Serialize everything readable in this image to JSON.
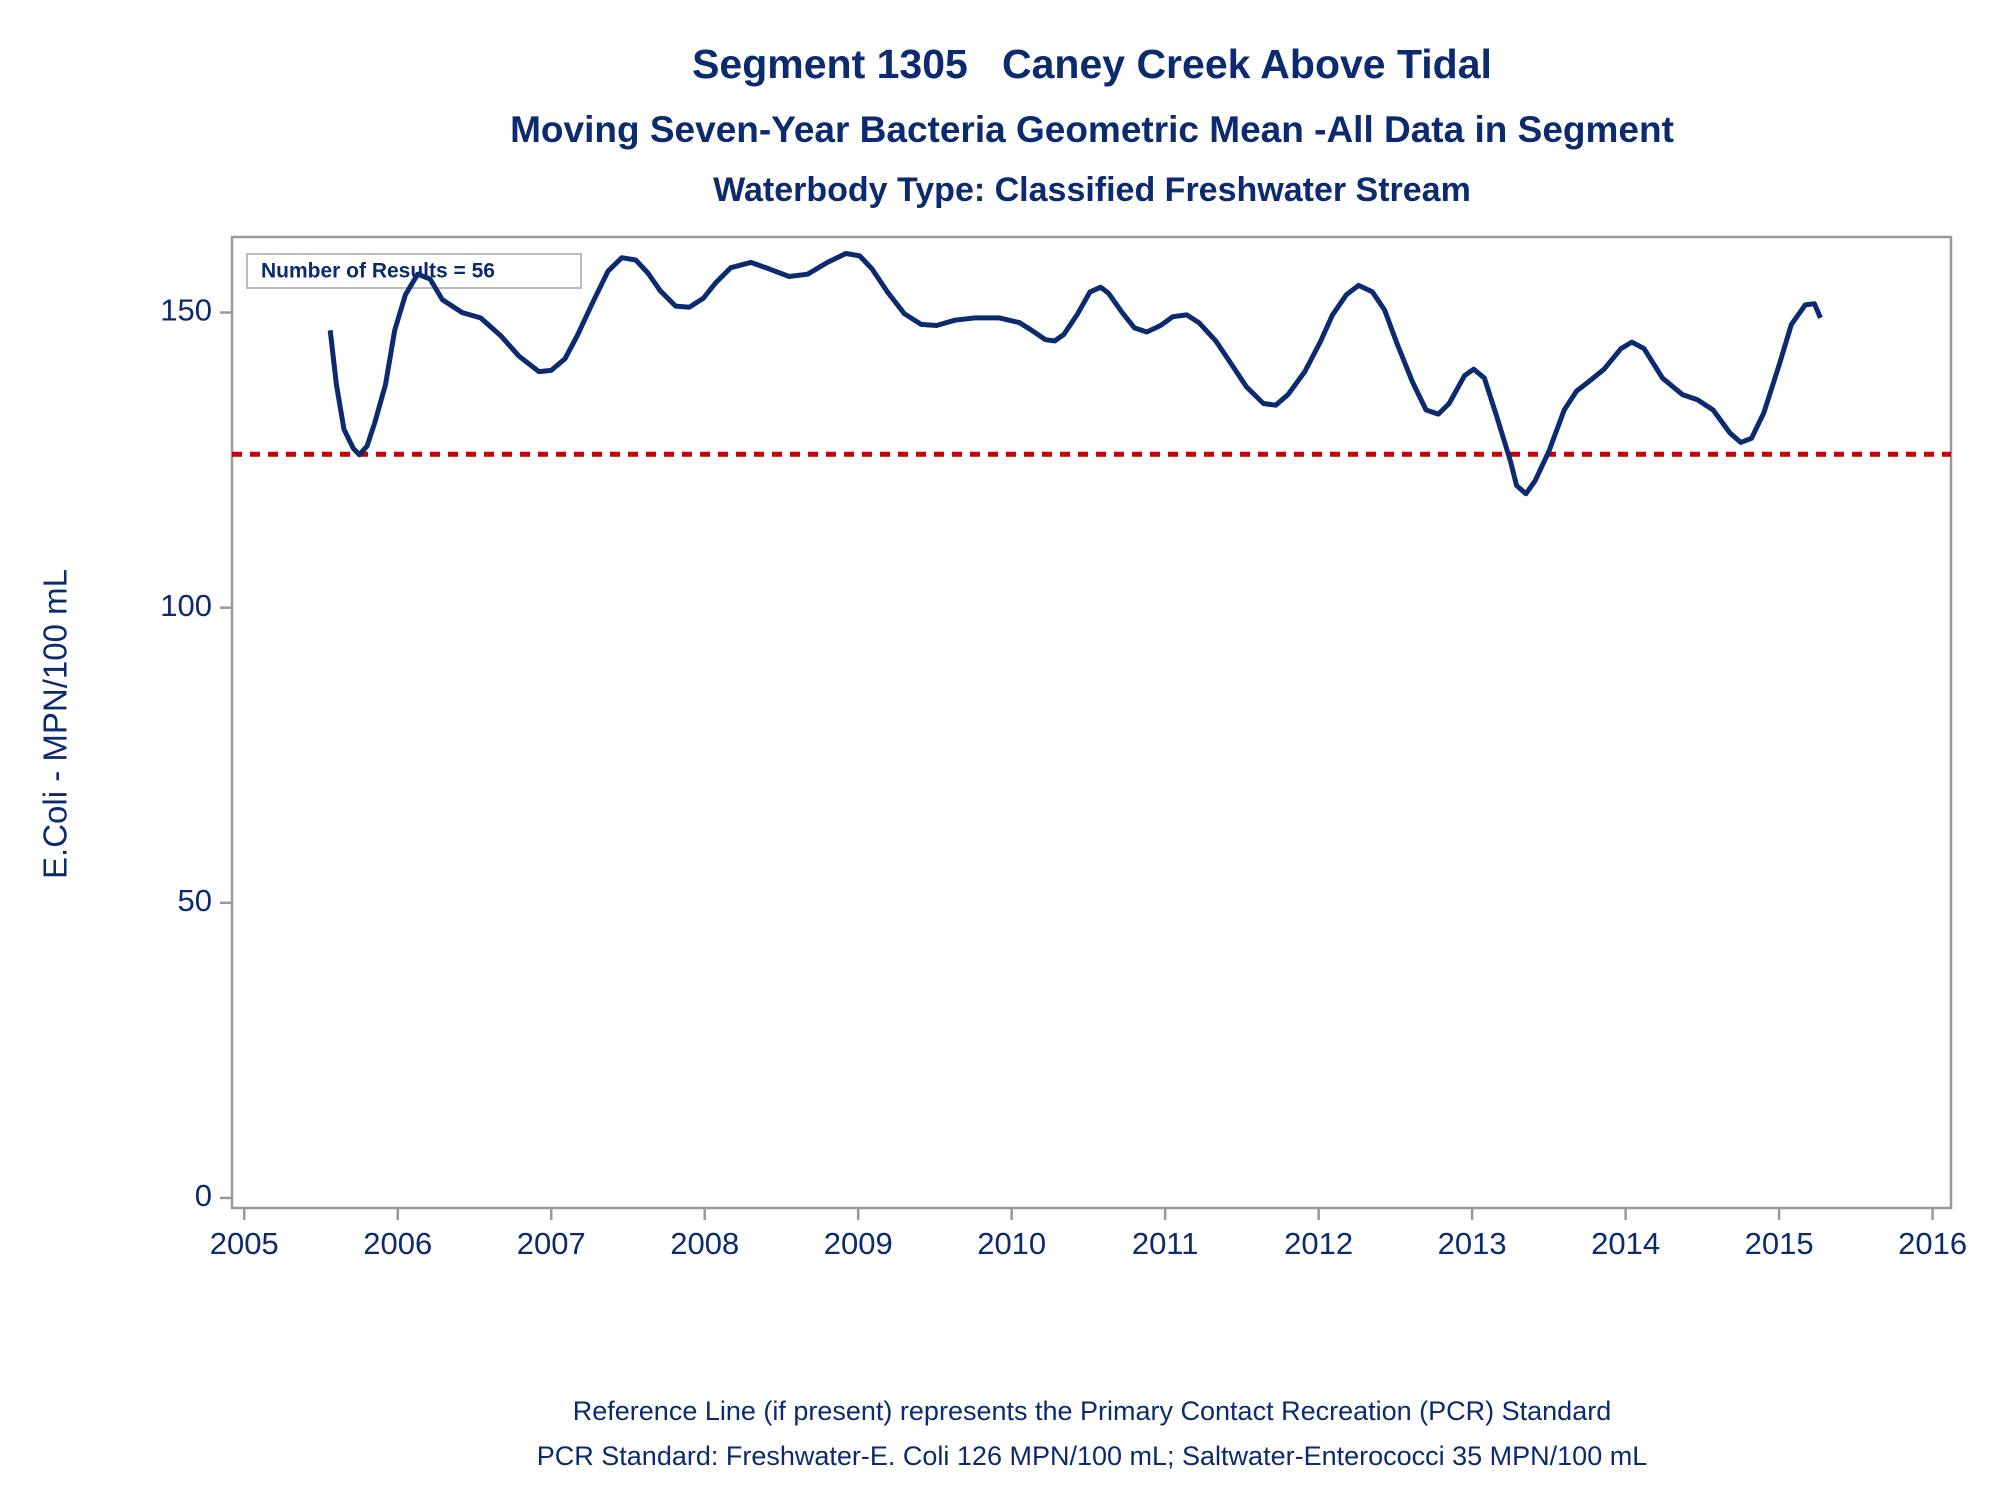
{
  "chart_data": {
    "type": "line",
    "title": "Segment 1305   Caney Creek Above Tidal",
    "subtitle": "Moving Seven-Year Bacteria Geometric Mean -All Data in Segment",
    "subtitle2": "Waterbody Type: Classified Freshwater Stream",
    "ylabel": "E.Coli - MPN/100 mL",
    "annotation": "Number of Results = 56",
    "footnotes": [
      "Reference Line (if present) represents the Primary Contact Recreation (PCR) Standard",
      "PCR Standard: Freshwater-E. Coli 126 MPN/100 mL; Saltwater-Enterococci 35 MPN/100 mL"
    ],
    "reference_line": {
      "value": 126,
      "color": "#cc0000"
    },
    "xlim": [
      2004.92,
      2016.12
    ],
    "xticks": [
      2005,
      2006,
      2007,
      2008,
      2009,
      2010,
      2011,
      2012,
      2013,
      2014,
      2015,
      2016
    ],
    "ylim": [
      -1.7,
      162.8
    ],
    "yticks": [
      0,
      50,
      100,
      150
    ],
    "x": [
      2005.56,
      2005.6,
      2005.65,
      2005.71,
      2005.75,
      2005.8,
      2005.85,
      2005.92,
      2005.98,
      2006.05,
      2006.13,
      2006.21,
      2006.29,
      2006.42,
      2006.54,
      2006.67,
      2006.79,
      2006.92,
      2007.0,
      2007.09,
      2007.17,
      2007.27,
      2007.37,
      2007.46,
      2007.55,
      2007.63,
      2007.71,
      2007.81,
      2007.9,
      2007.99,
      2008.07,
      2008.17,
      2008.3,
      2008.42,
      2008.55,
      2008.67,
      2008.8,
      2008.92,
      2009.01,
      2009.09,
      2009.19,
      2009.3,
      2009.41,
      2009.51,
      2009.63,
      2009.76,
      2009.92,
      2010.05,
      2010.13,
      2010.22,
      2010.28,
      2010.34,
      2010.43,
      2010.51,
      2010.58,
      2010.63,
      2010.72,
      2010.8,
      2010.88,
      2010.97,
      2011.05,
      2011.14,
      2011.22,
      2011.33,
      2011.43,
      2011.53,
      2011.64,
      2011.72,
      2011.8,
      2011.91,
      2012.01,
      2012.09,
      2012.18,
      2012.26,
      2012.35,
      2012.43,
      2012.51,
      2012.61,
      2012.7,
      2012.78,
      2012.85,
      2012.95,
      2013.01,
      2013.08,
      2013.16,
      2013.25,
      2013.29,
      2013.35,
      2013.41,
      2013.5,
      2013.6,
      2013.68,
      2013.76,
      2013.86,
      2013.97,
      2014.04,
      2014.12,
      2014.24,
      2014.37,
      2014.47,
      2014.57,
      2014.68,
      2014.75,
      2014.82,
      2014.9,
      2015.0,
      2015.08,
      2015.17,
      2015.23,
      2015.27
    ],
    "series": [
      {
        "color": "#0b2a6f",
        "values": [
          147,
          137.8,
          130.2,
          127,
          125.9,
          127.4,
          131.3,
          137.8,
          147,
          153,
          156.5,
          155.7,
          152.2,
          150,
          149.1,
          146.1,
          142.6,
          140,
          140.2,
          142.2,
          146.1,
          151.7,
          157,
          159.3,
          158.9,
          156.7,
          153.7,
          151.1,
          150.9,
          152.4,
          155,
          157.6,
          158.5,
          157.4,
          156.1,
          156.5,
          158.5,
          160,
          159.6,
          157.4,
          153.5,
          149.8,
          148,
          147.8,
          148.7,
          149.1,
          149.1,
          148.3,
          147,
          145.4,
          145.2,
          146.3,
          149.8,
          153.5,
          154.3,
          153.3,
          150,
          147.4,
          146.7,
          147.8,
          149.3,
          149.6,
          148.3,
          145.2,
          141.3,
          137.4,
          134.6,
          134.3,
          136.1,
          140,
          145,
          149.6,
          153,
          154.6,
          153.5,
          150.4,
          144.8,
          138.3,
          133.5,
          132.8,
          134.6,
          139.3,
          140.4,
          138.9,
          132.4,
          124.8,
          120.7,
          119.3,
          121.5,
          126.5,
          133.5,
          136.7,
          138.3,
          140.4,
          143.9,
          145,
          143.9,
          138.9,
          136.1,
          135.2,
          133.5,
          129.6,
          128,
          128.7,
          133,
          141.1,
          148,
          151.3,
          151.5,
          149.1
        ]
      }
    ]
  }
}
